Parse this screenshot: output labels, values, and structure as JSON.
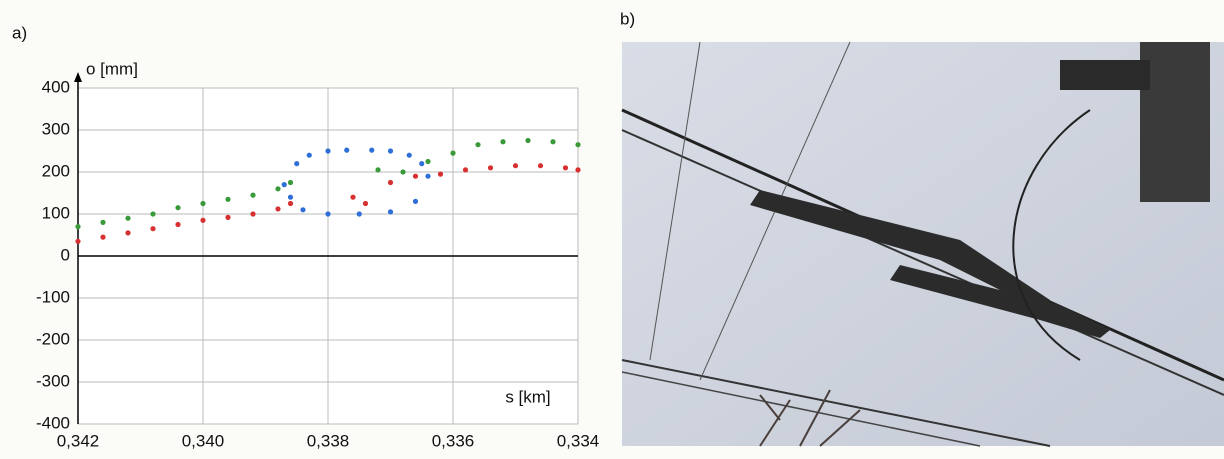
{
  "panel_labels": [
    "a)",
    "b)"
  ],
  "chart_data": {
    "type": "scatter",
    "x_label": "s [km]",
    "y_label": "o [mm]",
    "xlim": [
      0.342,
      0.334
    ],
    "ylim": [
      -400,
      400
    ],
    "xticks": [
      {
        "value": 0.342,
        "label": "0,342"
      },
      {
        "value": 0.34,
        "label": "0,340"
      },
      {
        "value": 0.338,
        "label": "0,338"
      },
      {
        "value": 0.336,
        "label": "0,336"
      },
      {
        "value": 0.334,
        "label": "0,334"
      }
    ],
    "yticks": [
      -400,
      -300,
      -200,
      -100,
      0,
      100,
      200,
      300,
      400
    ],
    "grid": true,
    "series": [
      {
        "color": "#3a9a3a",
        "x": [
          0.342,
          0.3416,
          0.3412,
          0.3408,
          0.3404,
          0.34,
          0.3396,
          0.3392,
          0.3388,
          0.3386,
          0.3372,
          0.3368,
          0.3364,
          0.336,
          0.3356,
          0.3352,
          0.3348,
          0.3344,
          0.334
        ],
        "values": [
          70,
          80,
          90,
          100,
          115,
          125,
          135,
          145,
          160,
          175,
          205,
          200,
          225,
          245,
          265,
          272,
          275,
          272,
          265
        ]
      },
      {
        "color": "#d63030",
        "x": [
          0.342,
          0.3416,
          0.3412,
          0.3408,
          0.3404,
          0.34,
          0.3396,
          0.3392,
          0.3388,
          0.3386,
          0.3376,
          0.3374,
          0.337,
          0.3366,
          0.3362,
          0.3358,
          0.3354,
          0.335,
          0.3346,
          0.3342,
          0.334
        ],
        "values": [
          35,
          45,
          55,
          65,
          75,
          85,
          92,
          100,
          112,
          125,
          140,
          125,
          175,
          190,
          195,
          205,
          210,
          215,
          215,
          210,
          205
        ]
      },
      {
        "color": "#2f6fd8",
        "x": [
          0.3387,
          0.3385,
          0.3383,
          0.338,
          0.3377,
          0.3373,
          0.337,
          0.3367,
          0.3365,
          0.3364,
          0.3366,
          0.337,
          0.3375,
          0.338,
          0.3384,
          0.3386
        ],
        "values": [
          170,
          220,
          240,
          250,
          252,
          252,
          250,
          240,
          220,
          190,
          130,
          105,
          100,
          100,
          110,
          140
        ]
      }
    ]
  }
}
